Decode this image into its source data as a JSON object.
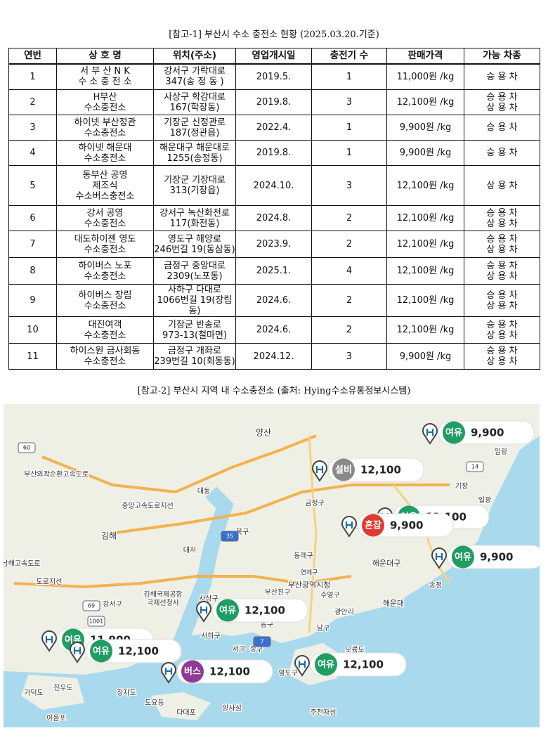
{
  "header": {
    "title": "[참고-1] 부산시 수소 충전소 현황 (2025.03.20.기준)"
  },
  "table": {
    "columns": [
      "연번",
      "상 호 명",
      "위치(주소)",
      "영업개시일",
      "충전기 수",
      "판매가격",
      "가능 차종"
    ],
    "rows": [
      [
        [
          "1"
        ],
        [
          "서 부 산 N K",
          "수 소 충 전 소"
        ],
        [
          "강서구 가락대로",
          "347(송 정 동 )"
        ],
        [
          "2019.5."
        ],
        [
          "1"
        ],
        [
          "11,000원 /kg"
        ],
        [
          "승 용 차"
        ]
      ],
      [
        [
          "2"
        ],
        [
          "H부산",
          "수소충전소"
        ],
        [
          "사상구 학감대로",
          "167(학장동)"
        ],
        [
          "2019.8."
        ],
        [
          "3"
        ],
        [
          "12,100원 /kg"
        ],
        [
          "승 용 차",
          "상 용 차"
        ]
      ],
      [
        [
          "3"
        ],
        [
          "하이넷 부산정관",
          "수소충전소"
        ],
        [
          "기장군 신정관로",
          "187(정관읍)"
        ],
        [
          "2022.4."
        ],
        [
          "1"
        ],
        [
          "9,900원 /kg"
        ],
        [
          "승 용 차"
        ]
      ],
      [
        [
          "4"
        ],
        [
          "하이넷 해운대",
          "수소충전소"
        ],
        [
          "해운대구 해운대로",
          "1255(송정동)"
        ],
        [
          "2019.8."
        ],
        [
          "1"
        ],
        [
          "9,900원 /kg"
        ],
        [
          "승 용 차"
        ]
      ],
      [
        [
          "5"
        ],
        [
          "동부산 공영",
          "제조식",
          "수소버스충전소"
        ],
        [
          "기장군 기장대로",
          "313(기장읍)"
        ],
        [
          "2024.10."
        ],
        [
          "3"
        ],
        [
          "12,100원 /kg"
        ],
        [
          "상 용 차"
        ]
      ],
      [
        [
          "6"
        ],
        [
          "강서 공영",
          "수소충전소"
        ],
        [
          "강서구 녹산화전로",
          "117(화전동)"
        ],
        [
          "2024.8."
        ],
        [
          "2"
        ],
        [
          "12,100원 /kg"
        ],
        [
          "승 용 차",
          "상 용 차"
        ]
      ],
      [
        [
          "7"
        ],
        [
          "대도하이젠 영도",
          "수소충전소"
        ],
        [
          "영도구 해양로",
          "246번길 19(동삼동)"
        ],
        [
          "2023.9."
        ],
        [
          "2"
        ],
        [
          "12,100원 /kg"
        ],
        [
          "승 용 차",
          "상 용 차"
        ]
      ],
      [
        [
          "8"
        ],
        [
          "하이버스 노포",
          "수소충전소"
        ],
        [
          "금정구 중앙대로",
          "2309(노포동)"
        ],
        [
          "2025.1."
        ],
        [
          "4"
        ],
        [
          "12,100원 /kg"
        ],
        [
          "승 용 차",
          "상 용 차"
        ]
      ],
      [
        [
          "9"
        ],
        [
          "하이버스 장림",
          "수소충전소"
        ],
        [
          "사하구 다대로",
          "1066번길 19(장림동)"
        ],
        [
          "2024.6."
        ],
        [
          "2"
        ],
        [
          "12,100원 /kg"
        ],
        [
          "승 용 차",
          "상 용 차"
        ]
      ],
      [
        [
          "10"
        ],
        [
          "대진여객",
          "수소충전소"
        ],
        [
          "기장군 반송로",
          "973-13(철마면)"
        ],
        [
          "2024.6."
        ],
        [
          "2"
        ],
        [
          "12,100원 /kg"
        ],
        [
          "승 용 차",
          "상 용 차"
        ]
      ],
      [
        [
          "11"
        ],
        [
          "하이스원 금사회동",
          "수소충전소"
        ],
        [
          "금정구 개좌로",
          "239번길 10(회동동)"
        ],
        [
          "2024.12."
        ],
        [
          "3"
        ],
        [
          "9,900원 /kg"
        ],
        [
          "승 용 차",
          "상 용 차"
        ]
      ]
    ]
  },
  "map": {
    "title": "[참고-2] 부산시 지역 내 수소충전소 (출처: Hying수소유통정보시스템)",
    "labels": [
      "양산",
      "대동",
      "금정구",
      "기장",
      "일광",
      "임랑",
      "북구",
      "김해",
      "대저",
      "동래구",
      "해운대구",
      "연제구",
      "부산광역시청",
      "부산진구",
      "수영구",
      "송정",
      "해운대",
      "강서구",
      "김해국제공항",
      "국제선청사",
      "사상구",
      "광안리",
      "동구",
      "남구",
      "서구",
      "중구",
      "오륙도",
      "영도구",
      "진우도",
      "장자도",
      "가덕도",
      "도요등",
      "다대포",
      "양사섬",
      "주전자섬",
      "어음포",
      "사하구",
      "부산외곽순환고속도로",
      "중앙고속도로지선",
      "남해고속도로",
      "도로지선"
    ],
    "road_numbers": [
      "60",
      "14",
      "35",
      "69",
      "1001",
      "7"
    ],
    "stations": [
      {
        "status": "여유",
        "price": "12,100",
        "color": "#1f9d62"
      },
      {
        "status": "여유",
        "price": "11,900",
        "color": "#1f9d62"
      },
      {
        "status": "여유",
        "price": "9,900",
        "color": "#1f9d62"
      },
      {
        "status": "설비",
        "price": "12,100",
        "color": "#8a8a8a"
      },
      {
        "status": "여유",
        "price": "9,900",
        "color": "#1f9d62"
      },
      {
        "status": "혼잡",
        "price": "9,900",
        "color": "#e03a2f"
      },
      {
        "status": "여유",
        "price": "12,100",
        "color": "#1f9d62"
      },
      {
        "status": "여유",
        "price": "12,100",
        "color": "#1f9d62"
      },
      {
        "status": "버스",
        "price": "12,100",
        "color": "#8e3a96"
      },
      {
        "status": "여유",
        "price": "12,100",
        "color": "#1f9d62"
      }
    ]
  }
}
